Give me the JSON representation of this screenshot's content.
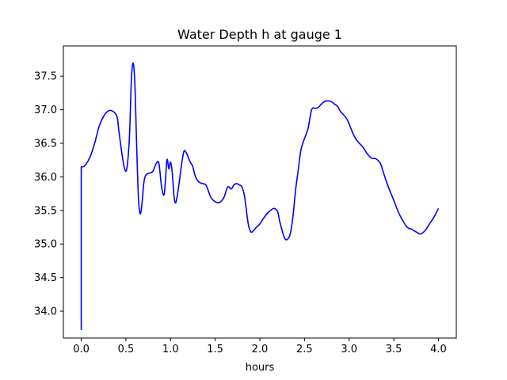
{
  "chart_data": {
    "type": "line",
    "title": "Water Depth h at gauge 1",
    "xlabel": "hours",
    "ylabel": "",
    "xlim": [
      -0.2,
      4.2
    ],
    "ylim": [
      33.6,
      37.95
    ],
    "xticks": [
      0.0,
      0.5,
      1.0,
      1.5,
      2.0,
      2.5,
      3.0,
      3.5,
      4.0
    ],
    "xtick_labels": [
      "0.0",
      "0.5",
      "1.0",
      "1.5",
      "2.0",
      "2.5",
      "3.0",
      "3.5",
      "4.0"
    ],
    "yticks": [
      34.0,
      34.5,
      35.0,
      35.5,
      36.0,
      36.5,
      37.0,
      37.5
    ],
    "ytick_labels": [
      "34.0",
      "34.5",
      "35.0",
      "35.5",
      "36.0",
      "36.5",
      "37.0",
      "37.5"
    ],
    "grid": false,
    "series": [
      {
        "color": "#0000ff",
        "x": [
          0.0,
          0.0,
          0.02,
          0.05,
          0.1,
          0.15,
          0.2,
          0.25,
          0.3,
          0.35,
          0.4,
          0.42,
          0.45,
          0.48,
          0.51,
          0.54,
          0.56,
          0.58,
          0.6,
          0.62,
          0.64,
          0.66,
          0.68,
          0.7,
          0.72,
          0.75,
          0.8,
          0.84,
          0.87,
          0.9,
          0.93,
          0.96,
          0.98,
          1.0,
          1.02,
          1.04,
          1.06,
          1.09,
          1.12,
          1.15,
          1.18,
          1.21,
          1.23,
          1.25,
          1.28,
          1.32,
          1.36,
          1.4,
          1.45,
          1.5,
          1.55,
          1.6,
          1.64,
          1.68,
          1.71,
          1.74,
          1.77,
          1.8,
          1.83,
          1.87,
          1.9,
          1.93,
          1.96,
          1.98,
          2.0,
          2.04,
          2.08,
          2.12,
          2.16,
          2.2,
          2.22,
          2.25,
          2.28,
          2.31,
          2.34,
          2.37,
          2.4,
          2.43,
          2.46,
          2.5,
          2.54,
          2.58,
          2.62,
          2.65,
          2.68,
          2.71,
          2.74,
          2.77,
          2.8,
          2.84,
          2.87,
          2.9,
          2.94,
          2.98,
          3.02,
          3.06,
          3.1,
          3.15,
          3.2,
          3.25,
          3.3,
          3.35,
          3.38,
          3.42,
          3.46,
          3.5,
          3.55,
          3.6,
          3.65,
          3.7,
          3.75,
          3.8,
          3.85,
          3.9,
          3.95,
          4.0
        ],
        "y": [
          33.72,
          36.15,
          36.15,
          36.18,
          36.3,
          36.5,
          36.75,
          36.9,
          36.98,
          36.98,
          36.9,
          36.7,
          36.4,
          36.15,
          36.12,
          36.6,
          37.4,
          37.7,
          37.4,
          36.5,
          35.7,
          35.45,
          35.6,
          35.9,
          36.02,
          36.05,
          36.08,
          36.2,
          36.2,
          35.85,
          35.75,
          36.25,
          36.12,
          36.22,
          36.05,
          35.7,
          35.62,
          35.85,
          36.15,
          36.38,
          36.35,
          36.25,
          36.2,
          36.15,
          36.0,
          35.92,
          35.9,
          35.87,
          35.7,
          35.63,
          35.62,
          35.7,
          35.85,
          35.82,
          35.88,
          35.9,
          35.88,
          35.85,
          35.7,
          35.3,
          35.18,
          35.2,
          35.25,
          35.27,
          35.3,
          35.38,
          35.45,
          35.5,
          35.53,
          35.48,
          35.35,
          35.2,
          35.08,
          35.07,
          35.15,
          35.4,
          35.8,
          36.1,
          36.4,
          36.57,
          36.72,
          37.0,
          37.02,
          37.03,
          37.07,
          37.11,
          37.13,
          37.13,
          37.12,
          37.08,
          37.05,
          36.98,
          36.92,
          36.85,
          36.72,
          36.6,
          36.52,
          36.45,
          36.35,
          36.28,
          36.27,
          36.2,
          36.08,
          35.92,
          35.78,
          35.65,
          35.48,
          35.35,
          35.25,
          35.22,
          35.18,
          35.15,
          35.2,
          35.3,
          35.4,
          35.53
        ]
      }
    ]
  }
}
